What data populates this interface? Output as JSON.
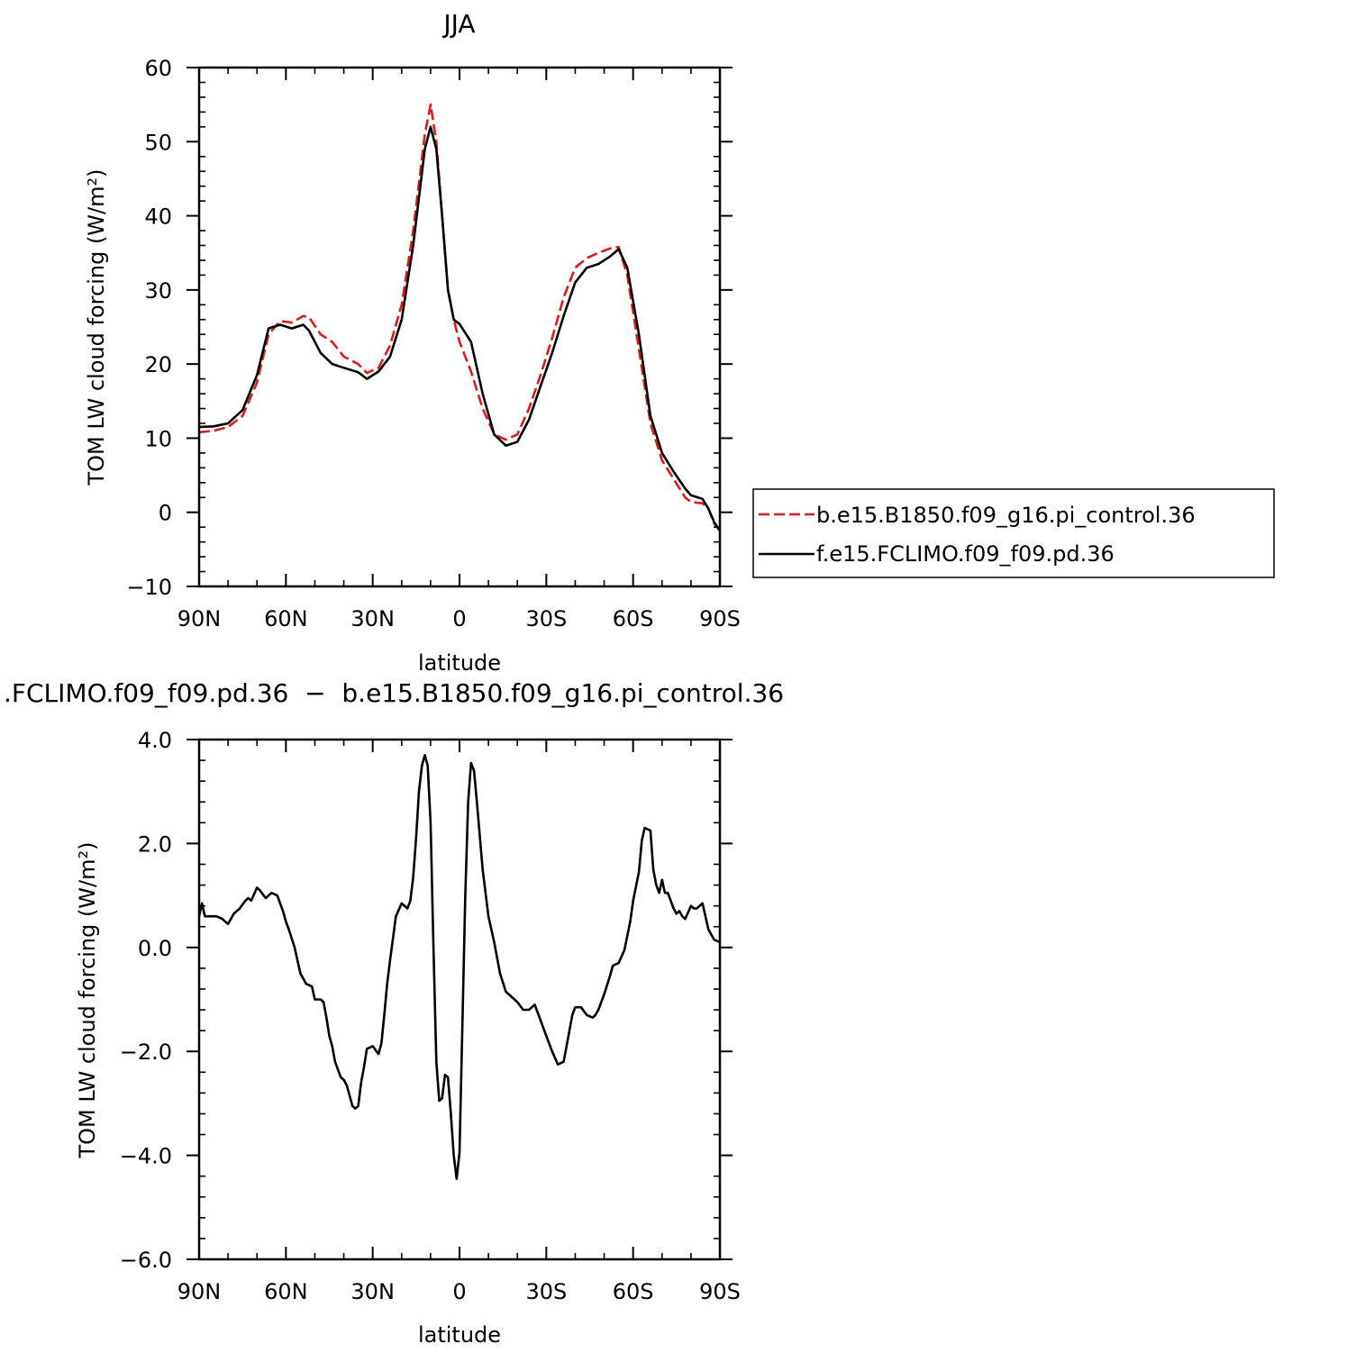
{
  "chart_data": [
    {
      "type": "line",
      "title": "JJA",
      "xlabel": "latitude",
      "ylabel": "TOM LW cloud forcing (W/m²)",
      "ylim": [
        -10,
        60
      ],
      "xlim": [
        90,
        -90
      ],
      "x_ticks": [
        90,
        60,
        30,
        0,
        -30,
        -60,
        -90
      ],
      "x_tick_labels": [
        "90N",
        "60N",
        "30N",
        "0",
        "30S",
        "60S",
        "90S"
      ],
      "y_ticks": [
        -10,
        0,
        10,
        20,
        30,
        40,
        50,
        60
      ],
      "y_tick_labels": [
        "−10",
        "0",
        "10",
        "20",
        "30",
        "40",
        "50",
        "60"
      ],
      "legend_position": "right",
      "series": [
        {
          "name": "b.e15.B1850.f09_g16.pi_control.36",
          "color": "#e0191b",
          "dash": "dashed",
          "x": [
            90,
            85,
            80,
            75,
            70,
            66,
            62,
            58,
            54,
            52,
            48,
            44,
            40,
            35,
            32,
            28,
            24,
            20,
            16,
            12,
            10,
            8,
            6,
            4,
            2,
            0,
            -4,
            -8,
            -12,
            -16,
            -20,
            -24,
            -28,
            -32,
            -36,
            -40,
            -44,
            -48,
            -52,
            -55,
            -58,
            -62,
            -66,
            -70,
            -74,
            -78,
            -80,
            -84,
            -86,
            -88,
            -90
          ],
          "values": [
            10.8,
            11.0,
            11.5,
            13.0,
            17.5,
            24.0,
            25.8,
            25.6,
            26.5,
            26.3,
            24.0,
            23.0,
            21.0,
            20.0,
            18.8,
            19.5,
            22.5,
            28.0,
            38.0,
            51.0,
            55.0,
            50.0,
            40.0,
            30.0,
            26.0,
            23.0,
            19.0,
            14.0,
            10.5,
            9.8,
            10.5,
            14.0,
            18.5,
            23.5,
            29.0,
            33.0,
            34.3,
            35.0,
            35.6,
            35.8,
            32.0,
            22.0,
            12.0,
            7.0,
            4.5,
            2.0,
            1.4,
            1.2,
            0.5,
            -1.5,
            -2.5
          ]
        },
        {
          "name": "f.e15.FCLIMO.f09_f09.pd.36",
          "color": "#000000",
          "dash": "solid",
          "x": [
            90,
            85,
            80,
            75,
            70,
            66,
            62,
            58,
            54,
            52,
            48,
            44,
            40,
            35,
            32,
            28,
            24,
            20,
            16,
            12,
            10,
            8,
            6,
            4,
            2,
            0,
            -4,
            -8,
            -12,
            -16,
            -20,
            -24,
            -28,
            -32,
            -36,
            -40,
            -44,
            -48,
            -52,
            -55,
            -58,
            -62,
            -66,
            -70,
            -74,
            -78,
            -80,
            -84,
            -86,
            -88,
            -90
          ],
          "values": [
            11.5,
            11.6,
            12.0,
            13.8,
            18.5,
            24.8,
            25.3,
            24.8,
            25.3,
            24.5,
            21.5,
            20.0,
            19.5,
            18.9,
            18.0,
            19.0,
            21.0,
            26.0,
            36.0,
            49.0,
            52.0,
            49.0,
            40.0,
            30.0,
            26.0,
            25.4,
            23.0,
            16.0,
            10.5,
            9.0,
            9.5,
            12.5,
            17.0,
            21.5,
            26.5,
            31.0,
            33.0,
            33.5,
            34.5,
            35.5,
            33.0,
            24.0,
            13.0,
            8.0,
            5.5,
            3.2,
            2.3,
            1.8,
            0.5,
            -1.3,
            -2.5
          ]
        }
      ]
    },
    {
      "type": "line",
      "title": ".FCLIMO.f09_f09.pd.36  −  b.e15.B1850.f09_g16.pi_control.36",
      "xlabel": "latitude",
      "ylabel": "TOM LW cloud forcing (W/m²)",
      "ylim": [
        -6,
        4
      ],
      "xlim": [
        90,
        -90
      ],
      "x_ticks": [
        90,
        60,
        30,
        0,
        -30,
        -60,
        -90
      ],
      "x_tick_labels": [
        "90N",
        "60N",
        "30N",
        "0",
        "30S",
        "60S",
        "90S"
      ],
      "y_ticks": [
        -6,
        -4,
        -2,
        0,
        2,
        4
      ],
      "y_tick_labels": [
        "−6.0",
        "−4.0",
        "−2.0",
        "0.0",
        "2.0",
        "4.0"
      ],
      "series": [
        {
          "color": "#000000",
          "dash": "solid",
          "x": [
            90,
            89,
            88,
            86,
            84,
            82,
            80,
            78,
            76,
            74,
            73,
            72,
            70,
            69,
            67,
            65,
            63,
            62,
            61,
            60,
            59,
            57,
            55,
            54,
            53,
            51,
            50,
            48,
            47,
            46,
            45,
            44,
            43,
            42,
            41,
            40,
            39,
            37,
            36,
            35,
            34,
            33,
            32,
            30,
            28,
            27,
            26,
            25,
            24,
            22,
            20,
            18,
            17,
            16,
            15,
            14,
            13,
            12,
            11,
            10,
            9,
            8,
            7,
            6,
            5,
            4,
            3,
            2,
            1,
            0,
            -1,
            -2,
            -3,
            -4,
            -5,
            -6,
            -8,
            -10,
            -12,
            -14,
            -16,
            -18,
            -20,
            -22,
            -24,
            -25,
            -26,
            -28,
            -30,
            -32,
            -34,
            -36,
            -38,
            -39,
            -40,
            -42,
            -44,
            -46,
            -47,
            -48,
            -50,
            -52,
            -53,
            -55,
            -57,
            -59,
            -60,
            -62,
            -63,
            -64,
            -66,
            -67,
            -68,
            -69,
            -70,
            -71,
            -72,
            -74,
            -75,
            -76,
            -77,
            -78,
            -80,
            -81,
            -82,
            -84,
            -86,
            -88,
            -90
          ],
          "values": [
            0.6,
            0.85,
            0.6,
            0.6,
            0.6,
            0.55,
            0.45,
            0.65,
            0.75,
            0.9,
            0.95,
            0.9,
            1.15,
            1.1,
            0.95,
            1.05,
            1.0,
            0.85,
            0.7,
            0.5,
            0.35,
            0.0,
            -0.5,
            -0.6,
            -0.7,
            -0.75,
            -1.0,
            -1.0,
            -1.05,
            -1.35,
            -1.7,
            -1.9,
            -2.2,
            -2.35,
            -2.5,
            -2.55,
            -2.65,
            -3.05,
            -3.1,
            -3.05,
            -2.6,
            -2.3,
            -1.95,
            -1.9,
            -2.05,
            -1.85,
            -1.3,
            -0.7,
            -0.25,
            0.6,
            0.85,
            0.75,
            0.9,
            1.35,
            2.1,
            3.0,
            3.5,
            3.7,
            3.5,
            2.4,
            0.0,
            -2.2,
            -2.95,
            -2.9,
            -2.45,
            -2.5,
            -3.2,
            -4.0,
            -4.45,
            -3.95,
            -1.5,
            1.0,
            2.8,
            3.55,
            3.4,
            2.8,
            1.5,
            0.6,
            0.1,
            -0.5,
            -0.85,
            -0.95,
            -1.05,
            -1.2,
            -1.2,
            -1.15,
            -1.1,
            -1.4,
            -1.7,
            -2.0,
            -2.25,
            -2.2,
            -1.6,
            -1.3,
            -1.15,
            -1.15,
            -1.3,
            -1.35,
            -1.3,
            -1.2,
            -0.9,
            -0.55,
            -0.35,
            -0.3,
            -0.05,
            0.5,
            0.9,
            1.45,
            2.05,
            2.3,
            2.25,
            1.5,
            1.2,
            1.05,
            1.3,
            1.05,
            1.05,
            0.75,
            0.65,
            0.7,
            0.6,
            0.55,
            0.8,
            0.75,
            0.75,
            0.85,
            0.35,
            0.15,
            0.1
          ]
        }
      ]
    }
  ]
}
